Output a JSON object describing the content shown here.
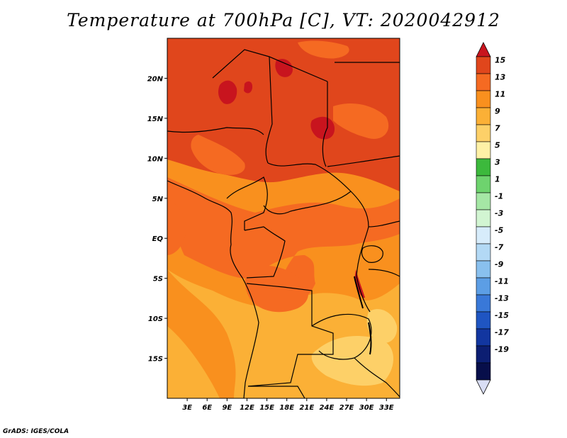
{
  "title": "Temperature at 700hPa [C], VT: 2020042912",
  "credit": "GrADS: IGES/COLA",
  "map": {
    "lat_labels": [
      "20N",
      "15N",
      "10N",
      "5N",
      "EQ",
      "5S",
      "10S",
      "15S"
    ],
    "lat_values": [
      20,
      15,
      10,
      5,
      0,
      -5,
      -10,
      -15
    ],
    "lon_labels": [
      "3E",
      "6E",
      "9E",
      "12E",
      "15E",
      "18E",
      "21E",
      "24E",
      "27E",
      "30E",
      "33E"
    ],
    "lon_values": [
      3,
      6,
      9,
      12,
      15,
      18,
      21,
      24,
      27,
      30,
      33
    ],
    "lon_range": [
      0,
      35
    ],
    "lat_range": [
      -20,
      25
    ]
  },
  "colorbar": {
    "labels": [
      "15",
      "13",
      "11",
      "9",
      "7",
      "5",
      "3",
      "1",
      "-1",
      "-3",
      "-5",
      "-7",
      "-9",
      "-11",
      "-13",
      "-15",
      "-17",
      "-19"
    ],
    "colors": [
      "#e0461c",
      "#f56a22",
      "#f9901e",
      "#fbb036",
      "#fdd068",
      "#fef1a6",
      "#3cb93c",
      "#6ed36e",
      "#a5e7a5",
      "#d2f5d2",
      "#d7ecfb",
      "#b3d9f5",
      "#89c0ee",
      "#5c9ee5",
      "#3978d8",
      "#1f55c2",
      "#1236a0",
      "#0c1e72",
      "#070e4a"
    ],
    "top_color": "#c8141e",
    "bottom_color": "#d9def5"
  }
}
